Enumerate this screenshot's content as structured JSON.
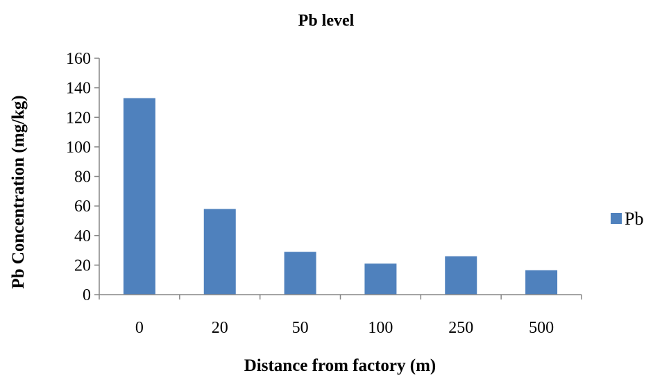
{
  "chart_data": {
    "type": "bar",
    "title": "Pb level",
    "xlabel": "Distance from factory (m)",
    "ylabel": "Pb Concentration (mg/kg)",
    "categories": [
      "0",
      "20",
      "50",
      "100",
      "250",
      "500"
    ],
    "series": [
      {
        "name": "Pb",
        "values": [
          133,
          58,
          29,
          21,
          26,
          16.5
        ],
        "color": "#4f81bd"
      }
    ],
    "ylim": [
      0,
      160
    ],
    "yticks": [
      "0",
      "20",
      "40",
      "60",
      "80",
      "100",
      "120",
      "140",
      "160"
    ],
    "grid": false,
    "legend_position": "right"
  }
}
